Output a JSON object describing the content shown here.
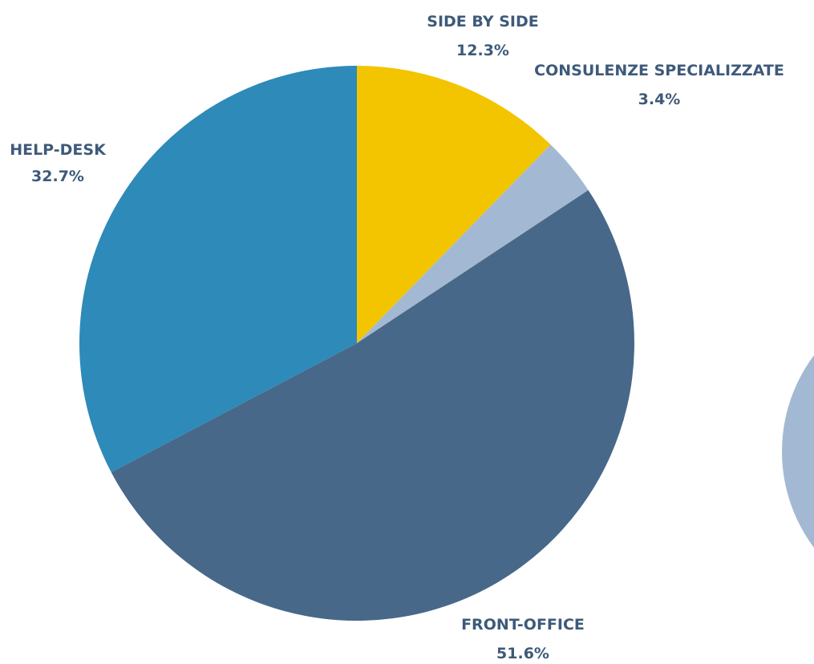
{
  "chart_data": {
    "type": "pie",
    "slices": [
      {
        "label": "Side by side",
        "value": 12.3,
        "value_label": "12.3%",
        "color": "#F2C500"
      },
      {
        "label": "Consulenze specializzate",
        "value": 3.4,
        "value_label": "3.4%",
        "color": "#A3B9D3"
      },
      {
        "label": "Front-office",
        "value": 51.6,
        "value_label": "51.6%",
        "color": "#476889"
      },
      {
        "label": "Help-desk",
        "value": 32.7,
        "value_label": "32.7%",
        "color": "#2E8AB8"
      }
    ],
    "start_angle": "top",
    "direction": "clockwise",
    "label_color": "#3E5A7A",
    "legend": "none"
  },
  "decoration": {
    "partial_circle_color": "#A3B9D3"
  }
}
